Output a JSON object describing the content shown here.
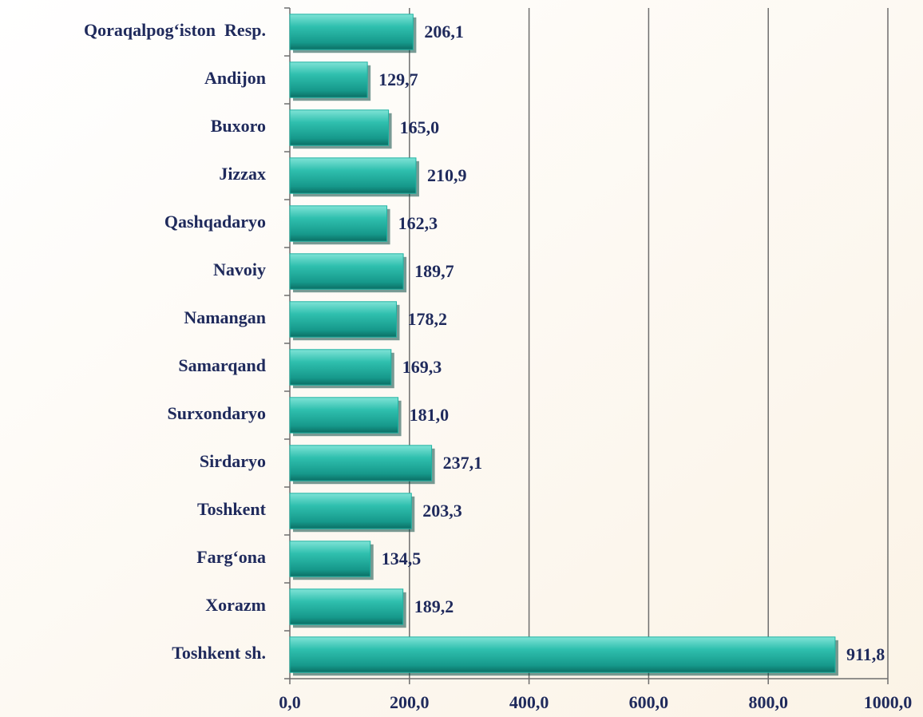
{
  "chart_data": {
    "type": "bar",
    "orientation": "horizontal",
    "categories": [
      "Qoraqalpog‘iston  Resp.",
      "Andijon",
      "Buxoro",
      "Jizzax",
      "Qashqadaryo",
      "Navoiy",
      "Namangan",
      "Samarqand",
      "Surxondaryo",
      "Sirdaryo",
      "Toshkent",
      "Farg‘ona",
      "Xorazm",
      "Toshkent sh."
    ],
    "values": [
      206.1,
      129.7,
      165.0,
      210.9,
      162.3,
      189.7,
      178.2,
      169.3,
      181.0,
      237.1,
      203.3,
      134.5,
      189.2,
      911.8
    ],
    "value_labels": [
      "206,1",
      "129,7",
      "165,0",
      "210,9",
      "162,3",
      "189,7",
      "178,2",
      "169,3",
      "181,0",
      "237,1",
      "203,3",
      "134,5",
      "189,2",
      "911,8"
    ],
    "color": "#1fb3a3",
    "xlim": [
      0,
      1000
    ],
    "xticks": [
      {
        "value": 0,
        "label": "0,0"
      },
      {
        "value": 200,
        "label": "200,0"
      },
      {
        "value": 400,
        "label": "400,0"
      },
      {
        "value": 600,
        "label": "600,0"
      },
      {
        "value": 800,
        "label": "800,0"
      },
      {
        "value": 1000,
        "label": "1000,0"
      }
    ],
    "grid": true
  }
}
